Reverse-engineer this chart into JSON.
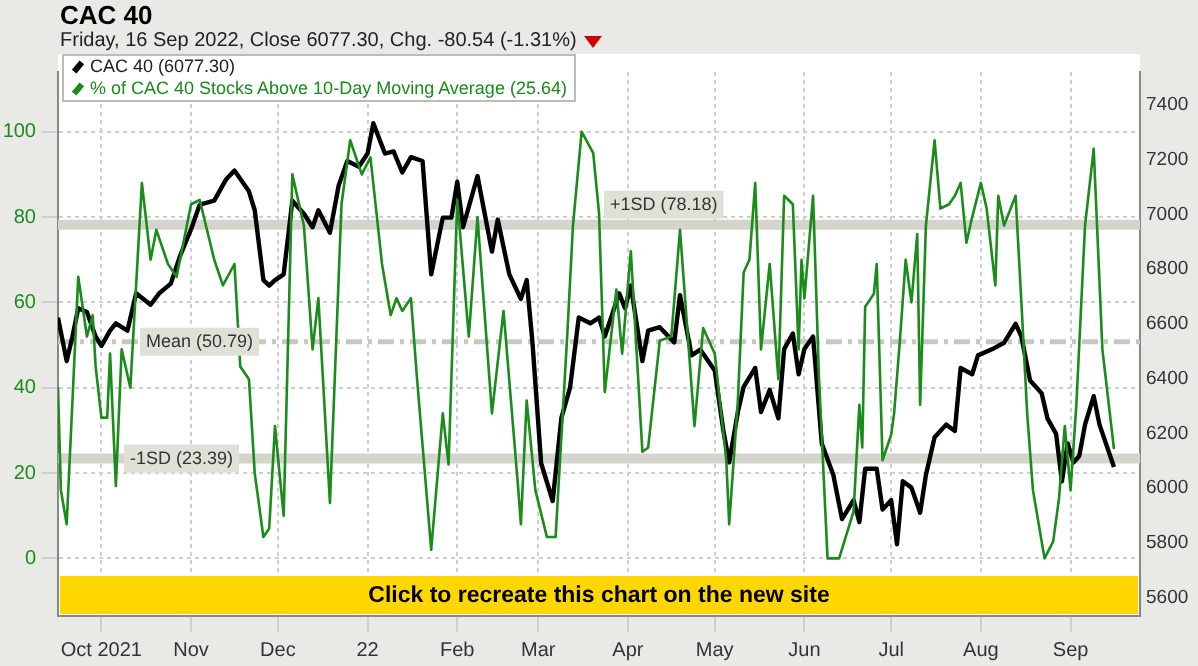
{
  "chart_data": {
    "type": "line",
    "title": "CAC 40",
    "subtitle": "Friday, 16 Sep 2022, Close 6077.30, Chg. -80.54 (-1.31%)",
    "annotations": [
      "Click to recreate this chart on the new site"
    ],
    "legend": "top left",
    "grid": true,
    "marker": "none",
    "line_style": "solid",
    "xlim": [
      "2021-09-16",
      "2022-09-25"
    ],
    "xticks": [
      {
        "value": "2021-10-01",
        "label": "Oct 2021"
      },
      {
        "value": "2021-11-01",
        "label": "Nov"
      },
      {
        "value": "2021-12-01",
        "label": "Dec"
      },
      {
        "value": "2022-01-01",
        "label": "22"
      },
      {
        "value": "2022-02-01",
        "label": "Feb"
      },
      {
        "value": "2022-03-01",
        "label": "Mar"
      },
      {
        "value": "2022-04-01",
        "label": "Apr"
      },
      {
        "value": "2022-05-01",
        "label": "May"
      },
      {
        "value": "2022-06-01",
        "label": "Jun"
      },
      {
        "value": "2022-07-01",
        "label": "Jul"
      },
      {
        "value": "2022-08-01",
        "label": "Aug"
      },
      {
        "value": "2022-09-01",
        "label": "Sep"
      }
    ],
    "ylim": [
      -13.5,
      114
    ],
    "yticks": [
      0,
      20,
      40,
      60,
      80,
      100
    ],
    "y2lim": [
      5533,
      7520
    ],
    "y2ticks": [
      5600,
      5800,
      6000,
      6200,
      6400,
      6600,
      6800,
      7000,
      7200,
      7400
    ],
    "ref_lines": [
      {
        "axis": "y",
        "value": 78.18,
        "label": "+1SD (78.18)",
        "color": "#d4d4cc",
        "line_style": "solid"
      },
      {
        "axis": "y",
        "value": 50.79,
        "label": "Mean (50.79)",
        "color": "#c8c8c0",
        "line_style": "dashed"
      },
      {
        "axis": "y",
        "value": 23.39,
        "label": "-1SD (23.39)",
        "color": "#d4d4cc",
        "line_style": "solid"
      }
    ],
    "series": [
      {
        "name": "% of CAC 40 Stocks Above 10-Day Moving Average (25.64)",
        "color": "#1a8c1a",
        "axis": "y",
        "x": [
          "2021-09-16",
          "2021-09-17",
          "2021-09-19",
          "2021-09-23",
          "2021-09-26",
          "2021-09-28",
          "2021-09-29",
          "2021-10-01",
          "2021-10-03",
          "2021-10-04",
          "2021-10-06",
          "2021-10-08",
          "2021-10-11",
          "2021-10-15",
          "2021-10-18",
          "2021-10-20",
          "2021-10-24",
          "2021-10-27",
          "2021-11-01",
          "2021-11-04",
          "2021-11-09",
          "2021-11-12",
          "2021-11-16",
          "2021-11-18",
          "2021-11-21",
          "2021-11-23",
          "2021-11-26",
          "2021-11-28",
          "2021-11-30",
          "2021-12-03",
          "2021-12-06",
          "2021-12-10",
          "2021-12-13",
          "2021-12-15",
          "2021-12-19",
          "2021-12-23",
          "2021-12-26",
          "2021-12-30",
          "2022-01-02",
          "2022-01-06",
          "2022-01-09",
          "2022-01-11",
          "2022-01-13",
          "2022-01-16",
          "2022-01-18",
          "2022-01-23",
          "2022-01-27",
          "2022-01-29",
          "2022-02-01",
          "2022-02-05",
          "2022-02-08",
          "2022-02-13",
          "2022-02-17",
          "2022-02-22",
          "2022-02-23",
          "2022-02-25",
          "2022-02-28",
          "2022-03-04",
          "2022-03-07",
          "2022-03-11",
          "2022-03-13",
          "2022-03-16",
          "2022-03-20",
          "2022-03-22",
          "2022-03-24",
          "2022-03-28",
          "2022-03-30",
          "2022-04-02",
          "2022-04-06",
          "2022-04-08",
          "2022-04-12",
          "2022-04-16",
          "2022-04-19",
          "2022-04-24",
          "2022-04-27",
          "2022-05-01",
          "2022-05-05",
          "2022-05-06",
          "2022-05-09",
          "2022-05-11",
          "2022-05-13",
          "2022-05-15",
          "2022-05-17",
          "2022-05-20",
          "2022-05-23",
          "2022-05-25",
          "2022-05-28",
          "2022-05-30",
          "2022-05-31",
          "2022-06-01",
          "2022-06-04",
          "2022-06-06",
          "2022-06-09",
          "2022-06-13",
          "2022-06-18",
          "2022-06-20",
          "2022-06-21",
          "2022-06-22",
          "2022-06-25",
          "2022-06-26",
          "2022-06-28",
          "2022-07-01",
          "2022-07-02",
          "2022-07-04",
          "2022-07-06",
          "2022-07-08",
          "2022-07-10",
          "2022-07-11",
          "2022-07-13",
          "2022-07-16",
          "2022-07-18",
          "2022-07-21",
          "2022-07-23",
          "2022-07-25",
          "2022-07-27",
          "2022-07-29",
          "2022-08-01",
          "2022-08-03",
          "2022-08-06",
          "2022-08-07",
          "2022-08-09",
          "2022-08-13",
          "2022-08-15",
          "2022-08-17",
          "2022-08-19",
          "2022-08-23",
          "2022-08-26",
          "2022-08-28",
          "2022-08-30",
          "2022-09-01",
          "2022-09-03",
          "2022-09-06",
          "2022-09-09",
          "2022-09-12",
          "2022-09-16"
        ],
        "values": [
          40,
          16,
          8,
          66,
          52,
          57,
          45,
          33,
          33,
          48,
          17,
          49,
          40,
          88,
          70,
          77,
          69,
          66,
          83,
          84,
          70,
          64,
          69,
          45,
          42,
          20,
          5,
          7,
          31,
          10,
          90,
          78,
          49,
          61,
          13,
          83,
          98,
          90,
          94,
          69,
          57,
          61,
          58,
          61,
          43,
          2,
          34,
          22,
          84,
          52,
          80,
          34,
          58,
          17,
          8,
          37,
          16,
          5,
          5,
          52,
          78,
          100,
          95,
          81,
          39,
          63,
          48,
          72,
          25,
          26,
          51,
          52,
          77,
          31,
          54,
          48,
          23,
          8,
          37,
          67,
          70,
          88,
          49,
          69,
          42,
          85,
          83,
          49,
          70,
          61,
          85,
          43,
          0,
          0,
          11,
          36,
          26,
          59,
          62,
          69,
          23,
          29,
          34,
          51,
          70,
          60,
          76,
          36,
          78,
          98,
          82,
          83,
          85,
          88,
          74,
          80,
          88,
          82,
          64,
          85,
          78,
          85,
          60,
          34,
          16,
          0,
          4,
          14,
          31,
          16,
          36,
          78,
          96,
          49,
          25.64
        ]
      },
      {
        "name": "CAC 40 (6077.30)",
        "color": "#000000",
        "axis": "y2",
        "x": [
          "2021-09-16",
          "2021-09-19",
          "2021-09-21",
          "2021-09-23",
          "2021-09-26",
          "2021-09-29",
          "2021-10-01",
          "2021-10-04",
          "2021-10-06",
          "2021-10-10",
          "2021-10-13",
          "2021-10-18",
          "2021-10-21",
          "2021-10-25",
          "2021-10-28",
          "2021-11-01",
          "2021-11-04",
          "2021-11-09",
          "2021-11-13",
          "2021-11-16",
          "2021-11-21",
          "2021-11-23",
          "2021-11-26",
          "2021-11-28",
          "2021-11-30",
          "2021-12-03",
          "2021-12-06",
          "2021-12-10",
          "2021-12-13",
          "2021-12-15",
          "2021-12-19",
          "2021-12-22",
          "2021-12-25",
          "2021-12-29",
          "2022-01-01",
          "2022-01-03",
          "2022-01-07",
          "2022-01-10",
          "2022-01-13",
          "2022-01-16",
          "2022-01-20",
          "2022-01-23",
          "2022-01-27",
          "2022-01-30",
          "2022-02-01",
          "2022-02-03",
          "2022-02-08",
          "2022-02-13",
          "2022-02-15",
          "2022-02-19",
          "2022-02-23",
          "2022-02-25",
          "2022-02-27",
          "2022-03-02",
          "2022-03-06",
          "2022-03-09",
          "2022-03-12",
          "2022-03-15",
          "2022-03-19",
          "2022-03-22",
          "2022-03-24",
          "2022-03-29",
          "2022-03-31",
          "2022-04-02",
          "2022-04-06",
          "2022-04-08",
          "2022-04-12",
          "2022-04-17",
          "2022-04-19",
          "2022-04-23",
          "2022-04-26",
          "2022-05-01",
          "2022-05-04",
          "2022-05-06",
          "2022-05-09",
          "2022-05-11",
          "2022-05-15",
          "2022-05-17",
          "2022-05-20",
          "2022-05-23",
          "2022-05-25",
          "2022-05-28",
          "2022-05-30",
          "2022-06-01",
          "2022-06-04",
          "2022-06-07",
          "2022-06-11",
          "2022-06-14",
          "2022-06-18",
          "2022-06-20",
          "2022-06-22",
          "2022-06-26",
          "2022-06-28",
          "2022-07-01",
          "2022-07-03",
          "2022-07-05",
          "2022-07-08",
          "2022-07-11",
          "2022-07-13",
          "2022-07-16",
          "2022-07-20",
          "2022-07-23",
          "2022-07-25",
          "2022-07-29",
          "2022-07-31",
          "2022-08-05",
          "2022-08-09",
          "2022-08-13",
          "2022-08-15",
          "2022-08-18",
          "2022-08-22",
          "2022-08-24",
          "2022-08-27",
          "2022-08-29",
          "2022-08-31",
          "2022-09-02",
          "2022-09-04",
          "2022-09-06",
          "2022-09-09",
          "2022-09-11",
          "2022-09-16"
        ],
        "values": [
          6623,
          6464,
          6554,
          6657,
          6643,
          6554,
          6520,
          6575,
          6602,
          6575,
          6712,
          6670,
          6712,
          6747,
          6843,
          6946,
          7036,
          7050,
          7126,
          7160,
          7084,
          7015,
          6760,
          6740,
          6760,
          6781,
          7050,
          7002,
          6953,
          7015,
          6933,
          7105,
          7195,
          7174,
          7222,
          7333,
          7222,
          7230,
          7153,
          7209,
          7195,
          6781,
          6988,
          6988,
          7119,
          6953,
          7140,
          6864,
          6981,
          6781,
          6691,
          6760,
          6532,
          6091,
          5953,
          6257,
          6367,
          6623,
          6602,
          6623,
          6554,
          6712,
          6657,
          6740,
          6464,
          6575,
          6588,
          6532,
          6705,
          6485,
          6506,
          6430,
          6209,
          6094,
          6278,
          6370,
          6439,
          6278,
          6359,
          6255,
          6508,
          6565,
          6416,
          6508,
          6554,
          6163,
          6048,
          5887,
          5956,
          5876,
          6071,
          6071,
          5922,
          5956,
          5795,
          6025,
          6002,
          5910,
          6048,
          6186,
          6232,
          6209,
          6439,
          6416,
          6485,
          6508,
          6531,
          6600,
          6554,
          6393,
          6347,
          6255,
          6198,
          6025,
          6163,
          6094,
          6117,
          6232,
          6336,
          6232,
          6077.3
        ]
      }
    ]
  }
}
